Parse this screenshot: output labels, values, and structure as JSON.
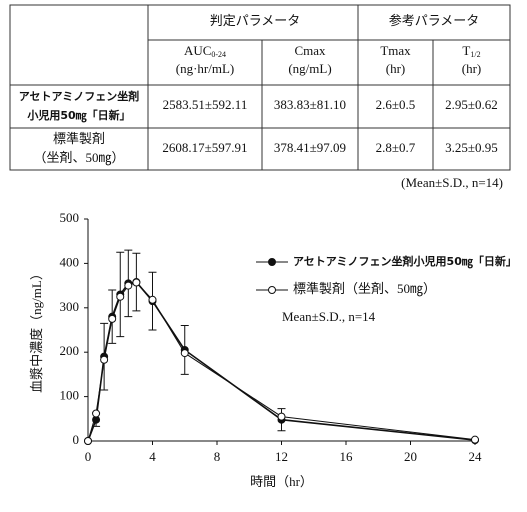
{
  "table": {
    "group_headers": [
      "判定パラメータ",
      "参考パラメータ"
    ],
    "columns": [
      {
        "name": "AUC",
        "sub": "0-24",
        "unit": "(ng·hr/mL)"
      },
      {
        "name": "Cmax",
        "unit": "(ng/mL)"
      },
      {
        "name": "Tmax",
        "unit": "(hr)"
      },
      {
        "name": "T",
        "sub": "1/2",
        "unit": "(hr)"
      }
    ],
    "rows": [
      {
        "label": [
          "アセトアミノフェン坐剤",
          "小児用50㎎「日新」"
        ],
        "cells": [
          "2583.51±592.11",
          "383.83±81.10",
          "2.6±0.5",
          "2.95±0.62"
        ]
      },
      {
        "label": [
          "標準製剤",
          "（坐剤、50㎎）"
        ],
        "cells": [
          "2608.17±597.91",
          "378.41±97.09",
          "2.8±0.7",
          "3.25±0.95"
        ]
      }
    ],
    "note": "(Mean±S.D., n=14)"
  },
  "chart_data": {
    "type": "line",
    "x_label": "時間（hr）",
    "y_label": "血漿中濃度（ng/mL）",
    "x": [
      0,
      0.5,
      1,
      1.5,
      2,
      2.5,
      3,
      4,
      6,
      12,
      24
    ],
    "xlim": [
      0,
      24
    ],
    "xticks": [
      0,
      4,
      8,
      12,
      16,
      20,
      24
    ],
    "ylim": [
      0,
      500
    ],
    "yticks": [
      0,
      100,
      200,
      300,
      400,
      500
    ],
    "series": [
      {
        "name": "アセトアミノフェン坐剤小児用50㎎「日新」",
        "color": "#111111",
        "marker": "filled",
        "values": [
          0,
          48,
          190,
          280,
          330,
          355,
          358,
          315,
          205,
          48,
          2
        ],
        "errors": [
          0,
          15,
          75,
          60,
          95,
          75,
          65,
          65,
          55,
          25,
          2
        ]
      },
      {
        "name": "標準製剤（坐剤、50㎎）",
        "color": "#111111",
        "marker": "open",
        "values": [
          0,
          62,
          183,
          275,
          325,
          350,
          357,
          318,
          198,
          55,
          3
        ]
      }
    ],
    "annotation": "Mean±S.D., n=14"
  }
}
